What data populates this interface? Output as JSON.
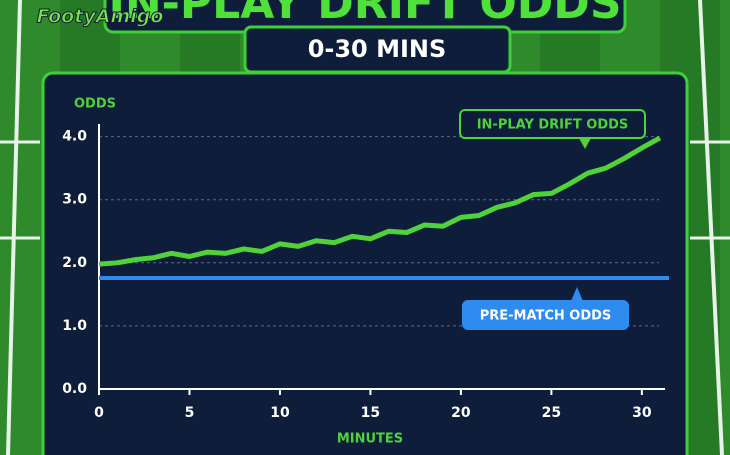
{
  "brand": "FootyAmigo",
  "chart_data": {
    "type": "line",
    "title": "IN-PLAY DRIFT ODDS",
    "subtitle": "0-30 MINS",
    "y_label": "ODDS",
    "x_label": "MINUTES",
    "xlim": [
      0,
      31.5
    ],
    "ylim": [
      0,
      4.2
    ],
    "xticks": [
      0,
      5,
      10,
      15,
      20,
      25,
      30
    ],
    "yticks": [
      {
        "value": 0,
        "label": "0.0"
      },
      {
        "value": 1,
        "label": "1.0"
      },
      {
        "value": 2,
        "label": "2.0"
      },
      {
        "value": 3,
        "label": "3.0"
      },
      {
        "value": 4,
        "label": "4.0"
      }
    ],
    "grid": true,
    "series": [
      {
        "name": "IN-PLAY DRIFT ODDS",
        "color": "#4fd23a",
        "x": [
          0,
          1,
          2,
          3,
          4,
          5,
          6,
          7,
          8,
          9,
          10,
          11,
          12,
          13,
          14,
          15,
          16,
          17,
          18,
          19,
          20,
          21,
          22,
          23,
          24,
          25,
          26,
          27,
          28,
          29,
          30,
          31
        ],
        "values": [
          1.98,
          2.0,
          2.05,
          2.08,
          2.15,
          2.1,
          2.17,
          2.15,
          2.22,
          2.18,
          2.3,
          2.26,
          2.35,
          2.32,
          2.42,
          2.38,
          2.5,
          2.48,
          2.6,
          2.58,
          2.72,
          2.75,
          2.88,
          2.95,
          3.08,
          3.1,
          3.25,
          3.42,
          3.5,
          3.65,
          3.82,
          3.98
        ]
      },
      {
        "name": "PRE-MATCH ODDS",
        "color": "#2e8cf0",
        "x": [
          0,
          31.5
        ],
        "values": [
          1.76,
          1.76
        ]
      }
    ]
  }
}
